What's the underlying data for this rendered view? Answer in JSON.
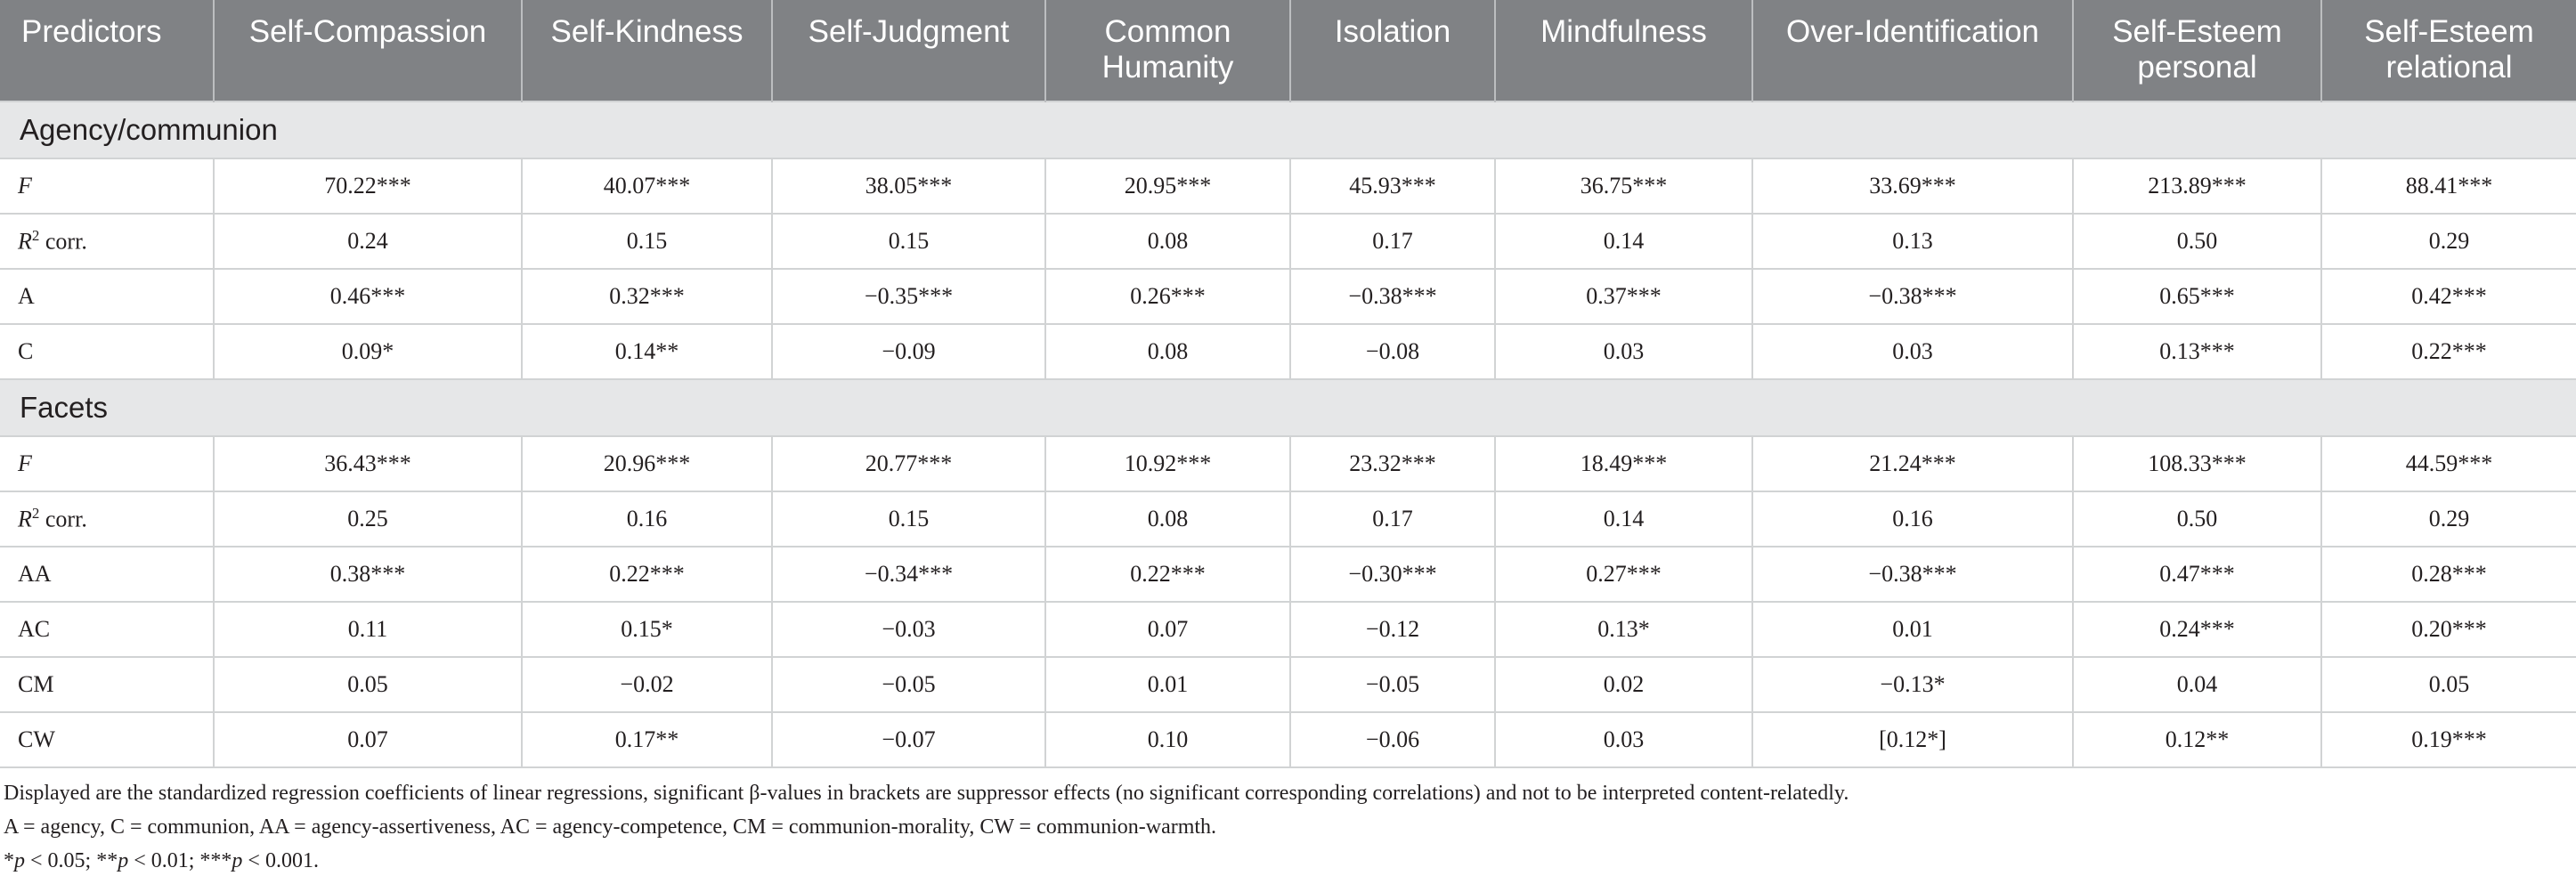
{
  "table": {
    "headers": [
      "Predictors",
      "Self-Compassion",
      "Self-Kindness",
      "Self-Judgment",
      "Common Humanity",
      "Isolation",
      "Mindfulness",
      "Over-Identification",
      "Self-Esteem personal",
      "Self-Esteem relational"
    ],
    "sections": [
      {
        "title": "Agency/communion",
        "rows": [
          {
            "predictor": "F",
            "values": [
              "70.22***",
              "40.07***",
              "38.05***",
              "20.95***",
              "45.93***",
              "36.75***",
              "33.69***",
              "213.89***",
              "88.41***"
            ]
          },
          {
            "predictor": "R",
            "values": [
              "0.24",
              "0.15",
              "0.15",
              "0.08",
              "0.17",
              "0.14",
              "0.13",
              "0.50",
              "0.29"
            ]
          },
          {
            "predictor": "A",
            "values": [
              "0.46***",
              "0.32***",
              "−0.35***",
              "0.26***",
              "−0.38***",
              "0.37***",
              "−0.38***",
              "0.65***",
              "0.42***"
            ]
          },
          {
            "predictor": "C",
            "values": [
              "0.09*",
              "0.14**",
              "−0.09",
              "0.08",
              "−0.08",
              "0.03",
              "0.03",
              "0.13***",
              "0.22***"
            ]
          }
        ]
      },
      {
        "title": "Facets",
        "rows": [
          {
            "predictor": "F",
            "values": [
              "36.43***",
              "20.96***",
              "20.77***",
              "10.92***",
              "23.32***",
              "18.49***",
              "21.24***",
              "108.33***",
              "44.59***"
            ]
          },
          {
            "predictor": "R",
            "values": [
              "0.25",
              "0.16",
              "0.15",
              "0.08",
              "0.17",
              "0.14",
              "0.16",
              "0.50",
              "0.29"
            ]
          },
          {
            "predictor": "AA",
            "values": [
              "0.38***",
              "0.22***",
              "−0.34***",
              "0.22***",
              "−0.30***",
              "0.27***",
              "−0.38***",
              "0.47***",
              "0.28***"
            ]
          },
          {
            "predictor": "AC",
            "values": [
              "0.11",
              "0.15*",
              "−0.03",
              "0.07",
              "−0.12",
              "0.13*",
              "0.01",
              "0.24***",
              "0.20***"
            ]
          },
          {
            "predictor": "CM",
            "values": [
              "0.05",
              "−0.02",
              "−0.05",
              "0.01",
              "−0.05",
              "0.02",
              "−0.13*",
              "0.04",
              "0.05"
            ]
          },
          {
            "predictor": "CW",
            "values": [
              "0.07",
              "0.17**",
              "−0.07",
              "0.10",
              "−0.06",
              "0.03",
              "[0.12*]",
              "0.12**",
              "0.19***"
            ]
          }
        ]
      }
    ],
    "r2_superscript": "2",
    "r2_suffix": " corr."
  },
  "notes": {
    "line1": "Displayed are the standardized regression coefficients of linear regressions, significant β-values in brackets are suppressor effects (no significant corresponding correlations) and not to be interpreted content-relatedly.",
    "line2": "A = agency, C = communion, AA = agency-assertiveness, AC = agency-competence, CM = communion-morality, CW = communion-warmth.",
    "sig": [
      {
        "sym": "*",
        "p": "p",
        "rest": " < 0.05; "
      },
      {
        "sym": "**",
        "p": "p",
        "rest": " < 0.01; "
      },
      {
        "sym": "***",
        "p": "p",
        "rest": " < 0.001."
      }
    ]
  }
}
